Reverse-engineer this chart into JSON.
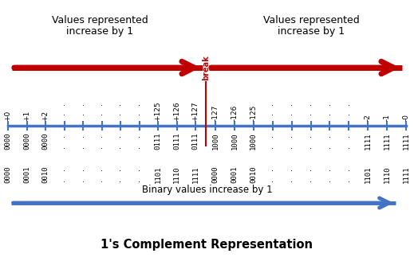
{
  "title": "1's Complement Representation",
  "arrow_left_text1": "Values represented",
  "arrow_left_text2": "increase by 1",
  "arrow_right_text1": "Values represented",
  "arrow_right_text2": "increase by 1",
  "break_text": "break",
  "binary_arrow_text": "Binary values increase by 1",
  "dec_left": [
    "+0",
    "+1",
    "+2",
    "··",
    "··",
    "··",
    "··",
    "··",
    "+125",
    "+126",
    "+127"
  ],
  "dec_right": [
    "-127",
    "-126",
    "-125",
    "··",
    "··",
    "··",
    "··",
    "··",
    "-2",
    "-1",
    "-0"
  ],
  "bin_left": [
    "0000\n0000",
    "0000\n0001",
    "0000\n0010",
    "··",
    "··",
    "··",
    "··",
    "··",
    "0111\n1101",
    "0111\n1110",
    "0111\n1111"
  ],
  "bin_right": [
    "1000\n0000",
    "1000\n0001",
    "1000\n0010",
    "··",
    "··",
    "··",
    "··",
    "··",
    "1111\n1101",
    "1111\n1110",
    "1111\n1111"
  ],
  "red_color": "#C00000",
  "blue_color": "#4472C4",
  "background": "#FFFFFF"
}
